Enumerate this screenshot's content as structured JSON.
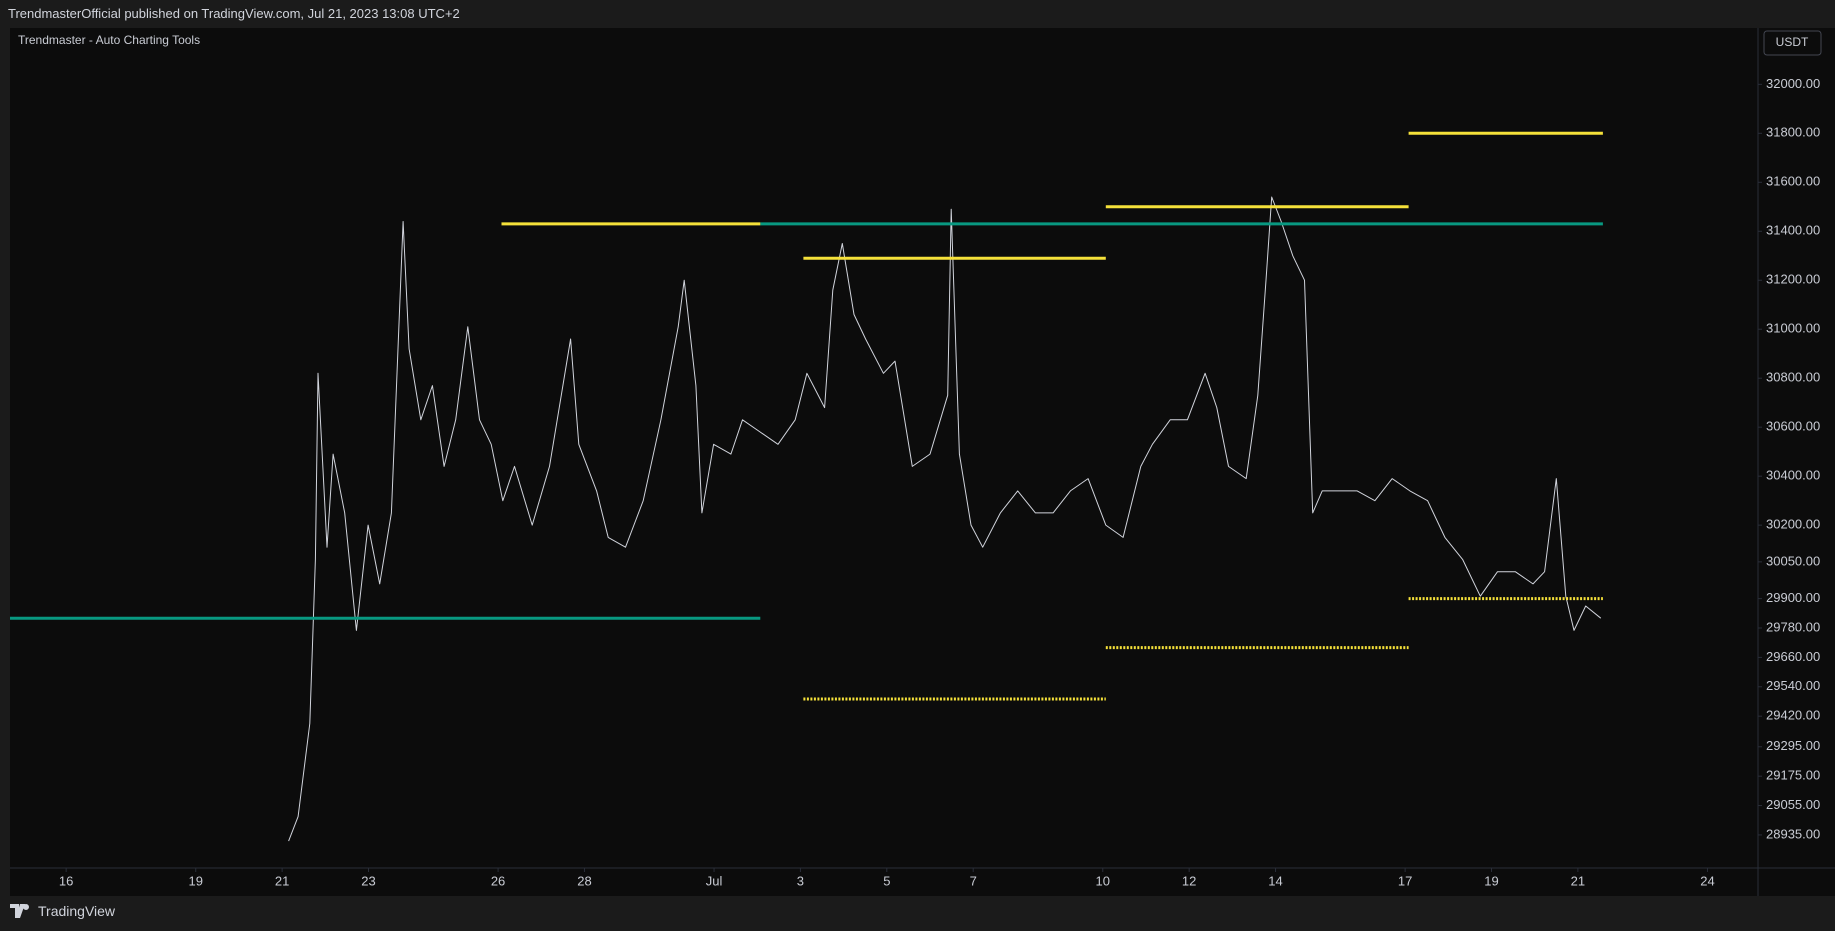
{
  "header": {
    "title": "TrendmasterOfficial published on TradingView.com, Jul 21, 2023 13:08 UTC+2"
  },
  "footer": {
    "brand": "TradingView"
  },
  "chart_data": {
    "type": "line",
    "title": "Trendmaster - Auto Charting Tools",
    "currency": "USDT",
    "grid": false,
    "xlim": [
      14.7,
      55.17
    ],
    "ylim": [
      28800,
      32230
    ],
    "xticks": [
      {
        "value": 16,
        "label": "16"
      },
      {
        "value": 19,
        "label": "19"
      },
      {
        "value": 21,
        "label": "21"
      },
      {
        "value": 23,
        "label": "23"
      },
      {
        "value": 26,
        "label": "26"
      },
      {
        "value": 28,
        "label": "28"
      },
      {
        "value": 31,
        "label": "Jul"
      },
      {
        "value": 33,
        "label": "3"
      },
      {
        "value": 35,
        "label": "5"
      },
      {
        "value": 37,
        "label": "7"
      },
      {
        "value": 40,
        "label": "10"
      },
      {
        "value": 42,
        "label": "12"
      },
      {
        "value": 44,
        "label": "14"
      },
      {
        "value": 47,
        "label": "17"
      },
      {
        "value": 49,
        "label": "19"
      },
      {
        "value": 51,
        "label": "21"
      },
      {
        "value": 54,
        "label": "24"
      }
    ],
    "yticks": [
      {
        "value": 32000,
        "label": "32000.00"
      },
      {
        "value": 31800,
        "label": "31800.00"
      },
      {
        "value": 31600,
        "label": "31600.00"
      },
      {
        "value": 31400,
        "label": "31400.00"
      },
      {
        "value": 31200,
        "label": "31200.00"
      },
      {
        "value": 31000,
        "label": "31000.00"
      },
      {
        "value": 30800,
        "label": "30800.00"
      },
      {
        "value": 30600,
        "label": "30600.00"
      },
      {
        "value": 30400,
        "label": "30400.00"
      },
      {
        "value": 30200,
        "label": "30200.00"
      },
      {
        "value": 30050,
        "label": "30050.00"
      },
      {
        "value": 29900,
        "label": "29900.00"
      },
      {
        "value": 29780,
        "label": "29780.00"
      },
      {
        "value": 29660,
        "label": "29660.00"
      },
      {
        "value": 29540,
        "label": "29540.00"
      },
      {
        "value": 29420,
        "label": "29420.00"
      },
      {
        "value": 29295,
        "label": "29295.00"
      },
      {
        "value": 29175,
        "label": "29175.00"
      },
      {
        "value": 29055,
        "label": "29055.00"
      },
      {
        "value": 28935,
        "label": "28935.00"
      }
    ],
    "series": [
      {
        "color": "#d1d4dc",
        "style": "solid",
        "x": [
          21.15,
          21.37,
          21.64,
          21.77,
          21.83,
          22.04,
          22.18,
          22.45,
          22.72,
          22.99,
          23.26,
          23.53,
          23.8,
          23.94,
          24.21,
          24.48,
          24.75,
          25.02,
          25.3,
          25.57,
          25.84,
          26.11,
          26.38,
          26.79,
          27.19,
          27.68,
          27.87,
          28.28,
          28.55,
          28.95,
          29.36,
          29.77,
          30.17,
          30.31,
          30.58,
          30.72,
          30.99,
          31.39,
          31.66,
          32.07,
          32.48,
          32.88,
          33.15,
          33.56,
          33.75,
          33.97,
          34.24,
          34.51,
          34.92,
          35.19,
          35.59,
          36.0,
          36.41,
          36.49,
          36.68,
          36.95,
          37.22,
          37.63,
          38.03,
          38.44,
          38.85,
          39.25,
          39.66,
          40.07,
          40.47,
          40.88,
          41.15,
          41.56,
          41.96,
          42.37,
          42.64,
          42.91,
          43.32,
          43.59,
          43.78,
          43.91,
          44.13,
          44.4,
          44.67,
          44.86,
          45.08,
          45.49,
          45.89,
          46.3,
          46.7,
          47.11,
          47.52,
          47.92,
          48.33,
          48.74,
          49.14,
          49.55,
          49.96,
          50.23,
          50.5,
          50.72,
          50.91,
          51.18,
          51.53
        ],
        "values": [
          28910,
          29010,
          29390,
          30060,
          30820,
          30110,
          30490,
          30250,
          29770,
          30200,
          29960,
          30250,
          31440,
          30920,
          30630,
          30770,
          30440,
          30630,
          31010,
          30630,
          30530,
          30300,
          30440,
          30200,
          30440,
          30960,
          30530,
          30340,
          30150,
          30110,
          30300,
          30630,
          31010,
          31200,
          30770,
          30250,
          30530,
          30490,
          30630,
          30580,
          30530,
          30630,
          30820,
          30680,
          31160,
          31350,
          31060,
          30960,
          30820,
          30870,
          30440,
          30490,
          30730,
          31490,
          30490,
          30200,
          30110,
          30250,
          30340,
          30250,
          30250,
          30340,
          30390,
          30200,
          30150,
          30440,
          30530,
          30630,
          30630,
          30820,
          30680,
          30440,
          30390,
          30730,
          31200,
          31540,
          31440,
          31300,
          31200,
          30250,
          30340,
          30340,
          30340,
          30300,
          30390,
          30340,
          30300,
          30150,
          30060,
          29910,
          30010,
          30010,
          29960,
          30010,
          30390,
          29910,
          29770,
          29870,
          29820
        ]
      },
      {
        "color": "#089981",
        "style": "solid",
        "x": [
          14.7,
          32.07
        ],
        "values": [
          29820,
          29820
        ]
      },
      {
        "color": "#089981",
        "style": "solid",
        "x": [
          32.07,
          51.58
        ],
        "values": [
          31430,
          31430
        ]
      },
      {
        "color": "#f5e13a",
        "style": "solid",
        "x": [
          26.08,
          32.07
        ],
        "values": [
          31430,
          31430
        ]
      },
      {
        "color": "#f5e13a",
        "style": "solid",
        "x": [
          33.07,
          40.07
        ],
        "values": [
          31290,
          31290
        ]
      },
      {
        "color": "#f5e13a",
        "style": "solid",
        "x": [
          40.07,
          47.08
        ],
        "values": [
          31500,
          31500
        ]
      },
      {
        "color": "#f5e13a",
        "style": "solid",
        "x": [
          47.08,
          51.58
        ],
        "values": [
          31800,
          31800
        ]
      },
      {
        "color": "#f5e13a",
        "style": "dotted",
        "x": [
          33.07,
          40.07
        ],
        "values": [
          29490,
          29490
        ]
      },
      {
        "color": "#f5e13a",
        "style": "dotted",
        "x": [
          40.07,
          47.08
        ],
        "values": [
          29700,
          29700
        ]
      },
      {
        "color": "#f5e13a",
        "style": "dotted",
        "x": [
          47.08,
          51.58
        ],
        "values": [
          29900,
          29900
        ]
      }
    ]
  }
}
